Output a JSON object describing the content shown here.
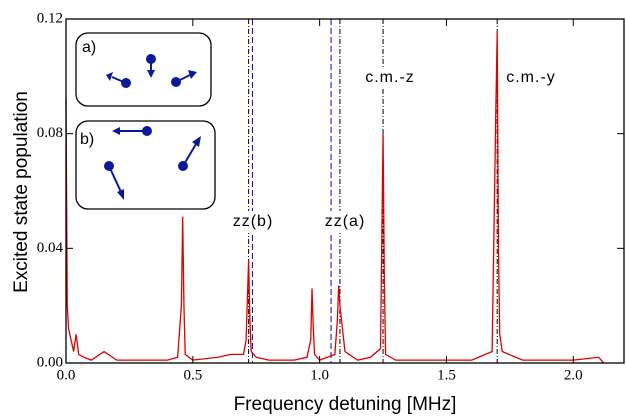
{
  "chart_data": {
    "type": "line",
    "x_label": "Frequency detuning [MHz]",
    "y_label": "Excited state population",
    "xlim": [
      0,
      2.2
    ],
    "ylim": [
      0,
      0.12
    ],
    "xticks": [
      {
        "value": 0,
        "label": "0.0"
      },
      0.5,
      {
        "value": 1,
        "label": "1.0"
      },
      1.5,
      {
        "value": 2,
        "label": "2.0"
      }
    ],
    "yticks": [
      {
        "value": 0,
        "label": "0.00"
      },
      0.04,
      0.08,
      0.12
    ],
    "series": [
      {
        "color": "#e00000",
        "x": [
          0.0,
          0.005,
          0.01,
          0.02,
          0.03,
          0.04,
          0.05,
          0.07,
          0.1,
          0.15,
          0.2,
          0.3,
          0.4,
          0.44,
          0.455,
          0.46,
          0.465,
          0.47,
          0.5,
          0.6,
          0.65,
          0.7,
          0.71,
          0.72,
          0.725,
          0.73,
          0.75,
          0.8,
          0.9,
          0.95,
          0.965,
          0.97,
          0.975,
          0.98,
          1.0,
          1.06,
          1.07,
          1.075,
          1.08,
          1.09,
          1.1,
          1.15,
          1.2,
          1.24,
          1.25,
          1.255,
          1.26,
          1.3,
          1.4,
          1.5,
          1.6,
          1.68,
          1.695,
          1.7,
          1.705,
          1.71,
          1.72,
          1.8,
          1.9,
          2.0,
          2.1,
          2.12
        ],
        "values": [
          0.092,
          0.02,
          0.012,
          0.008,
          0.004,
          0.01,
          0.003,
          0.002,
          0.001,
          0.004,
          0.001,
          0.001,
          0.001,
          0.002,
          0.02,
          0.051,
          0.02,
          0.003,
          0.001,
          0.002,
          0.003,
          0.003,
          0.008,
          0.036,
          0.015,
          0.004,
          0.002,
          0.001,
          0.001,
          0.002,
          0.008,
          0.026,
          0.012,
          0.003,
          0.001,
          0.003,
          0.015,
          0.027,
          0.02,
          0.012,
          0.004,
          0.001,
          0.002,
          0.005,
          0.08,
          0.03,
          0.003,
          0.001,
          0.001,
          0.001,
          0.001,
          0.004,
          0.09,
          0.115,
          0.04,
          0.01,
          0.004,
          0.001,
          0.001,
          0.001,
          0.002,
          0.0
        ]
      }
    ],
    "reference_lines": [
      {
        "x": 0.72,
        "color": "#000000",
        "style": "dashdot"
      },
      {
        "x": 0.735,
        "color": "#0000cc",
        "style": "dashed"
      },
      {
        "x": 1.045,
        "color": "#0000cc",
        "style": "dashed"
      },
      {
        "x": 1.08,
        "color": "#000000",
        "style": "dashdot"
      },
      {
        "x": 1.25,
        "color": "#000000",
        "style": "dashdot"
      },
      {
        "x": 1.7,
        "color": "#000000",
        "style": "dashdot"
      }
    ],
    "annotations": [
      "c.m.-z",
      "c.m.-y",
      "zz(b)",
      "zz(a)"
    ],
    "inset_labels": [
      "a)",
      "b)"
    ]
  }
}
